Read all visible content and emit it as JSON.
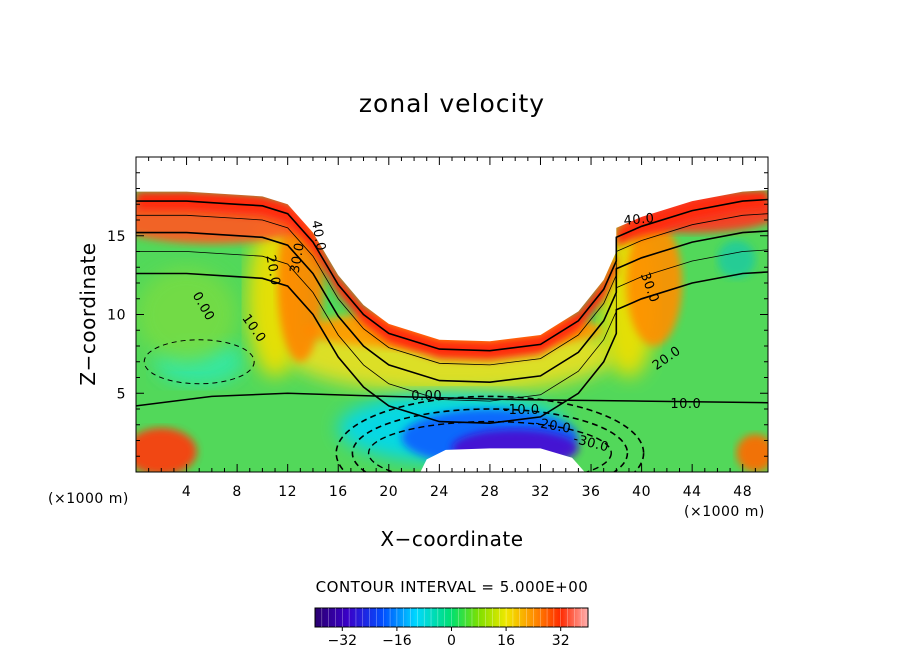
{
  "chart_data": {
    "type": "heatmap",
    "title": "zonal velocity",
    "xlabel": "X−coordinate",
    "ylabel": "Z−coordinate",
    "x_unit_left": "(×1000 m)",
    "x_unit_right": "(×1000 m)",
    "xlim": [
      0,
      50
    ],
    "ylim": [
      0,
      20
    ],
    "x_ticks": [
      4,
      8,
      12,
      16,
      20,
      24,
      28,
      32,
      36,
      40,
      44,
      48
    ],
    "y_ticks": [
      5,
      10,
      15
    ],
    "grid": false,
    "contour_interval_text": "CONTOUR INTERVAL = 5.000E+00",
    "colorbar": {
      "min": -40,
      "max": 40,
      "ticks": [
        -32,
        -16,
        0,
        16,
        32
      ],
      "tick_labels": [
        "−32",
        "−16",
        "0",
        "16",
        "32"
      ]
    },
    "terrain_top": [
      [
        0,
        17.8
      ],
      [
        4,
        17.8
      ],
      [
        8,
        17.6
      ],
      [
        10,
        17.5
      ],
      [
        12,
        17.0
      ],
      [
        14,
        15.2
      ],
      [
        16,
        12.5
      ],
      [
        18,
        10.6
      ],
      [
        20,
        9.4
      ],
      [
        24,
        8.4
      ],
      [
        28,
        8.3
      ],
      [
        32,
        8.7
      ],
      [
        35,
        10.2
      ],
      [
        37,
        12.2
      ],
      [
        38,
        14.0
      ],
      [
        38,
        15.5
      ],
      [
        40,
        16.2
      ],
      [
        44,
        17.2
      ],
      [
        48,
        17.8
      ],
      [
        50,
        17.9
      ]
    ],
    "terrain_bottom": [
      [
        22.5,
        0
      ],
      [
        23,
        0.8
      ],
      [
        24.5,
        1.4
      ],
      [
        28,
        1.5
      ],
      [
        32,
        1.5
      ],
      [
        34.5,
        0.9
      ],
      [
        35.5,
        0
      ]
    ],
    "jet_core": {
      "x": 30,
      "z": 1.5,
      "value": -35
    },
    "contour_labels": [
      {
        "text": "40.0",
        "x": 14.4,
        "z": 15.0,
        "angle": 80
      },
      {
        "text": "30.0",
        "x": 12.8,
        "z": 13.6,
        "angle": -80
      },
      {
        "text": "20.0",
        "x": 10.8,
        "z": 12.8,
        "angle": 80
      },
      {
        "text": "10.0",
        "x": 9.3,
        "z": 9.1,
        "angle": 55
      },
      {
        "text": "0.00",
        "x": 5.3,
        "z": 10.5,
        "angle": 60
      },
      {
        "text": "40.0",
        "x": 39.8,
        "z": 16.0,
        "angle": -5
      },
      {
        "text": "30.0",
        "x": 40.6,
        "z": 11.7,
        "angle": 70
      },
      {
        "text": "20.0",
        "x": 42.0,
        "z": 7.2,
        "angle": -35
      },
      {
        "text": "10.0",
        "x": 43.5,
        "z": 4.3,
        "angle": 0
      },
      {
        "text": "0.00",
        "x": 23.0,
        "z": 4.8,
        "angle": 0
      },
      {
        "text": "-10.0",
        "x": 30.5,
        "z": 3.9,
        "angle": 0
      },
      {
        "text": "-20.0",
        "x": 33.0,
        "z": 2.9,
        "angle": 10
      },
      {
        "text": "-30.0",
        "x": 36.0,
        "z": 1.8,
        "angle": 15
      }
    ]
  }
}
